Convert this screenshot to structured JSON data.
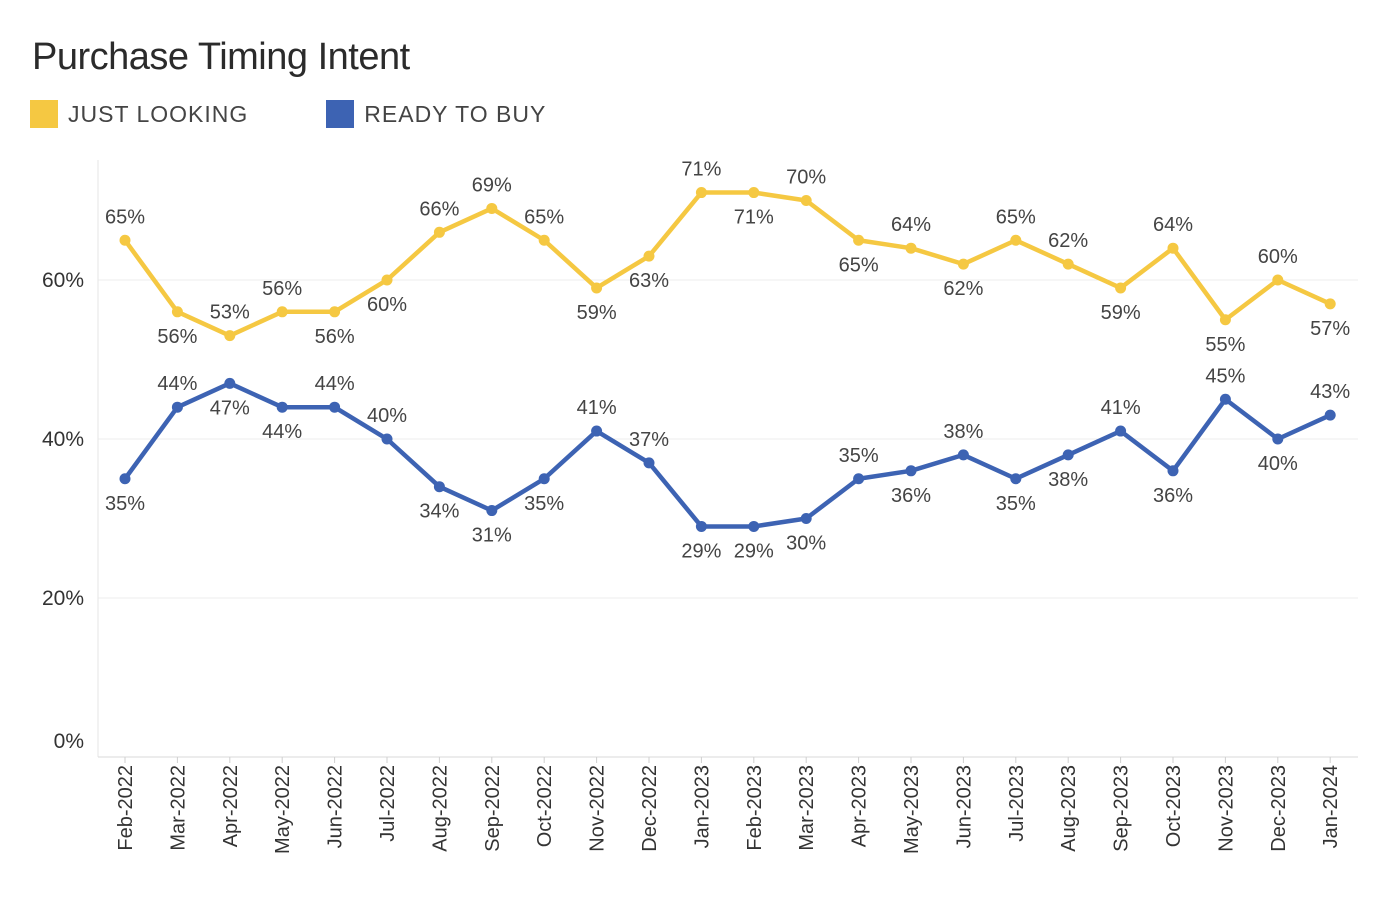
{
  "header": {
    "title": "Purchase Timing Intent"
  },
  "legend": {
    "items": [
      {
        "label": "JUST LOOKING",
        "color": "#F5C842"
      },
      {
        "label": "READY TO BUY",
        "color": "#3D63B3"
      }
    ]
  },
  "chart_data": {
    "type": "line",
    "title": "Purchase Timing Intent",
    "categories": [
      "Feb-2022",
      "Mar-2022",
      "Apr-2022",
      "May-2022",
      "Jun-2022",
      "Jul-2022",
      "Aug-2022",
      "Sep-2022",
      "Oct-2022",
      "Nov-2022",
      "Dec-2022",
      "Jan-2023",
      "Feb-2023",
      "Mar-2023",
      "Apr-2023",
      "May-2023",
      "Jun-2023",
      "Jul-2023",
      "Aug-2023",
      "Sep-2023",
      "Oct-2023",
      "Nov-2023",
      "Dec-2023",
      "Jan-2024"
    ],
    "series": [
      {
        "name": "JUST LOOKING",
        "color": "#F5C842",
        "values": [
          65,
          56,
          53,
          56,
          56,
          60,
          66,
          69,
          65,
          59,
          63,
          71,
          71,
          70,
          65,
          64,
          62,
          65,
          62,
          59,
          64,
          55,
          60,
          57
        ],
        "labels": [
          "65%",
          "56%",
          "53%",
          "56%",
          "56%",
          "60%",
          "66%",
          "69%",
          "65%",
          "59%",
          "63%",
          "71%",
          "71%",
          "70%",
          "65%",
          "64%",
          "62%",
          "65%",
          "62%",
          "59%",
          "64%",
          "55%",
          "60%",
          "57%"
        ],
        "label_positions": [
          "above",
          "below",
          "above",
          "above",
          "below",
          "below",
          "above",
          "above",
          "above",
          "below",
          "below",
          "above",
          "below",
          "above",
          "below",
          "above",
          "below",
          "above",
          "above",
          "below",
          "above",
          "below",
          "above",
          "below"
        ]
      },
      {
        "name": "READY TO BUY",
        "color": "#3D63B3",
        "values": [
          35,
          44,
          47,
          44,
          44,
          40,
          34,
          31,
          35,
          41,
          37,
          29,
          29,
          30,
          35,
          36,
          38,
          35,
          38,
          41,
          36,
          45,
          40,
          43
        ],
        "labels": [
          "35%",
          "44%",
          "47%",
          "44%",
          "44%",
          "40%",
          "34%",
          "31%",
          "35%",
          "41%",
          "37%",
          "29%",
          "29%",
          "30%",
          "35%",
          "36%",
          "38%",
          "35%",
          "38%",
          "41%",
          "36%",
          "45%",
          "40%",
          "43%"
        ],
        "label_positions": [
          "below",
          "above",
          "below",
          "below",
          "above",
          "above",
          "below",
          "below",
          "below",
          "above",
          "above",
          "below",
          "below",
          "below",
          "above",
          "below",
          "above",
          "below",
          "below",
          "above",
          "below",
          "above",
          "below",
          "above"
        ]
      }
    ],
    "y_ticks": [
      0,
      20,
      40,
      60
    ],
    "y_tick_labels": [
      "0%",
      "20%",
      "40%",
      "60%"
    ],
    "ylim": [
      0,
      77
    ],
    "grid": true,
    "legend_position": "top-left"
  }
}
